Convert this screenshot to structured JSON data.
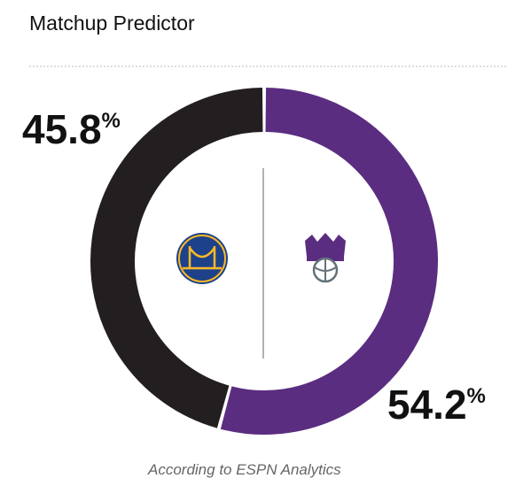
{
  "chart_data": {
    "type": "donut",
    "title": "Matchup Predictor",
    "values": [
      45.8,
      54.2
    ],
    "value_labels": [
      "45.8%",
      "54.2%"
    ],
    "colors": [
      "#231f20",
      "#5a2d81"
    ],
    "note": "According to ESPN Analytics"
  }
}
